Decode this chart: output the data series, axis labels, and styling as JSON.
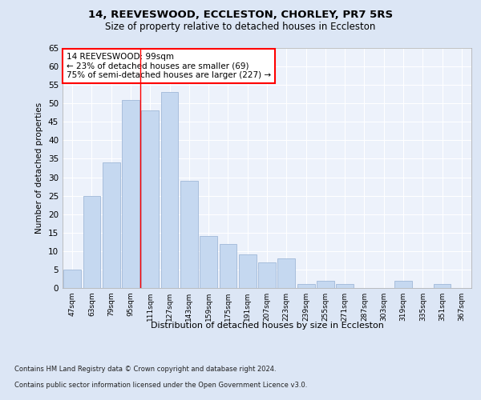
{
  "title1": "14, REEVESWOOD, ECCLESTON, CHORLEY, PR7 5RS",
  "title2": "Size of property relative to detached houses in Eccleston",
  "xlabel": "Distribution of detached houses by size in Eccleston",
  "ylabel": "Number of detached properties",
  "categories": [
    "47sqm",
    "63sqm",
    "79sqm",
    "95sqm",
    "111sqm",
    "127sqm",
    "143sqm",
    "159sqm",
    "175sqm",
    "191sqm",
    "207sqm",
    "223sqm",
    "239sqm",
    "255sqm",
    "271sqm",
    "287sqm",
    "303sqm",
    "319sqm",
    "335sqm",
    "351sqm",
    "367sqm"
  ],
  "values": [
    5,
    25,
    34,
    51,
    48,
    53,
    29,
    14,
    12,
    9,
    7,
    8,
    1,
    2,
    1,
    0,
    0,
    2,
    0,
    1,
    0
  ],
  "bar_color": "#c5d8f0",
  "bar_edge_color": "#a0b8d8",
  "vline_x_index": 3.5,
  "vline_color": "red",
  "annotation_text": "14 REEVESWOOD: 99sqm\n← 23% of detached houses are smaller (69)\n75% of semi-detached houses are larger (227) →",
  "annotation_box_color": "white",
  "annotation_box_edge": "red",
  "ylim": [
    0,
    65
  ],
  "yticks": [
    0,
    5,
    10,
    15,
    20,
    25,
    30,
    35,
    40,
    45,
    50,
    55,
    60,
    65
  ],
  "footer1": "Contains HM Land Registry data © Crown copyright and database right 2024.",
  "footer2": "Contains public sector information licensed under the Open Government Licence v3.0.",
  "bg_color": "#dce6f5",
  "plot_bg_color": "#edf2fb"
}
